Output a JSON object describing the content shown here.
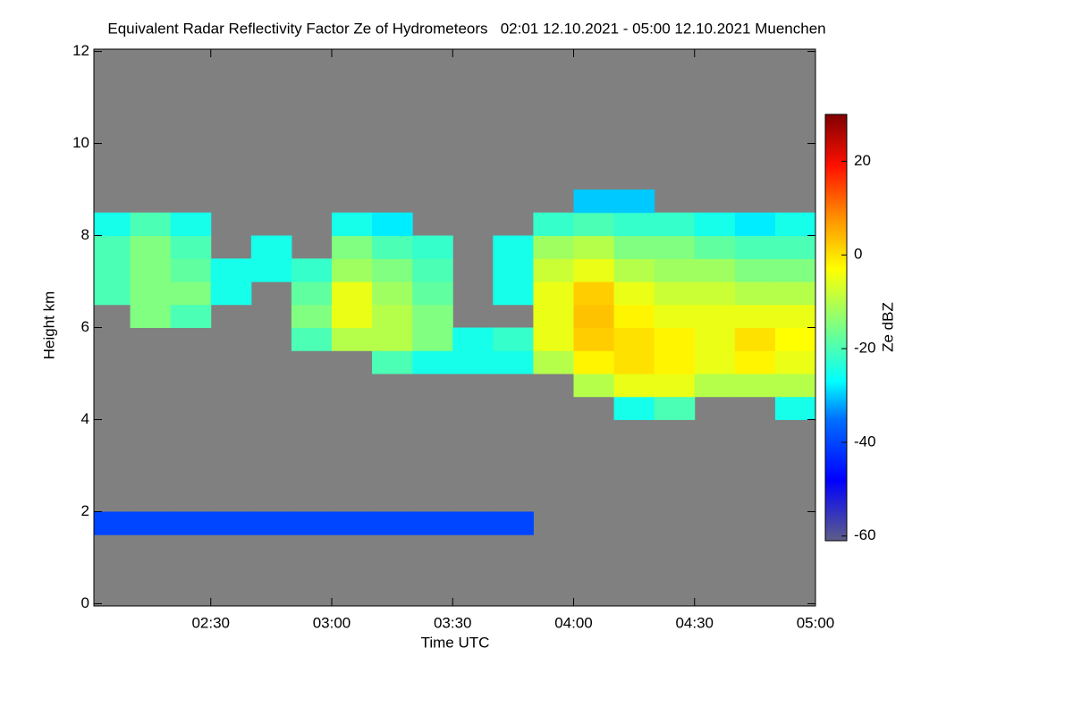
{
  "chart_data": {
    "type": "heatmap",
    "title": "Equivalent Radar Reflectivity Factor Ze of Hydrometeors   02:01 12.10.2021 - 05:00 12.10.2021 Muenchen",
    "x_label": "Time UTC",
    "y_label": "Height km",
    "colorbar_label": "Ze dBZ",
    "background": "#808080",
    "xlim": [
      121,
      300
    ],
    "xticks": [
      {
        "value": 150,
        "label": "02:30"
      },
      {
        "value": 180,
        "label": "03:00"
      },
      {
        "value": 210,
        "label": "03:30"
      },
      {
        "value": 240,
        "label": "04:00"
      },
      {
        "value": 270,
        "label": "04:30"
      },
      {
        "value": 300,
        "label": "05:00"
      }
    ],
    "ylim": [
      -0.05,
      12.05
    ],
    "yticks": [
      0,
      2,
      4,
      6,
      8,
      10,
      12
    ],
    "zlim": [
      -61,
      30
    ],
    "zticks": [
      20,
      0,
      -20,
      -40,
      -60
    ],
    "colormap": [
      [
        -61,
        "#5e5e88"
      ],
      [
        -48,
        "#0000ff"
      ],
      [
        -35,
        "#0070ff"
      ],
      [
        -27,
        "#00ffff"
      ],
      [
        -15,
        "#80ff80"
      ],
      [
        -3,
        "#ffff00"
      ],
      [
        8,
        "#ff9000"
      ],
      [
        19,
        "#ff1000"
      ],
      [
        30,
        "#800000"
      ]
    ],
    "x_bins": [
      121,
      130,
      140,
      150,
      160,
      170,
      180,
      190,
      200,
      210,
      220,
      230,
      240,
      250,
      260,
      270,
      280,
      290,
      300
    ],
    "y_bins": [
      1.5,
      2,
      2.5,
      3,
      3.5,
      4,
      4.5,
      5,
      5.5,
      6,
      6.5,
      7,
      7.5,
      8,
      8.5,
      9
    ],
    "z": [
      [
        -40,
        -40,
        -40,
        -40,
        -40,
        -40,
        -40,
        -40,
        -40,
        -40,
        -40,
        null,
        null,
        null,
        null,
        null,
        null,
        null
      ],
      [
        null,
        null,
        null,
        null,
        null,
        null,
        null,
        null,
        null,
        null,
        null,
        null,
        null,
        null,
        null,
        null,
        null,
        null
      ],
      [
        null,
        null,
        null,
        null,
        null,
        null,
        null,
        null,
        null,
        null,
        null,
        null,
        null,
        null,
        null,
        null,
        null,
        null
      ],
      [
        null,
        null,
        null,
        null,
        null,
        null,
        null,
        null,
        null,
        null,
        null,
        null,
        null,
        null,
        null,
        null,
        null,
        null
      ],
      [
        null,
        null,
        null,
        null,
        null,
        null,
        null,
        null,
        null,
        null,
        null,
        null,
        null,
        null,
        null,
        null,
        null,
        null
      ],
      [
        null,
        null,
        null,
        null,
        null,
        null,
        null,
        null,
        null,
        null,
        null,
        null,
        null,
        -25,
        -20,
        null,
        null,
        -25
      ],
      [
        null,
        null,
        null,
        null,
        null,
        null,
        null,
        null,
        null,
        null,
        null,
        null,
        -10,
        -5,
        -5,
        -10,
        -10,
        -10
      ],
      [
        null,
        null,
        null,
        null,
        null,
        null,
        null,
        -20,
        -25,
        -25,
        -25,
        -10,
        -2,
        0,
        -2,
        -5,
        -2,
        -5
      ],
      [
        null,
        null,
        null,
        null,
        null,
        -20,
        -10,
        -10,
        -15,
        -25,
        -22,
        -5,
        2,
        0,
        -2,
        -5,
        0,
        -3
      ],
      [
        null,
        -15,
        -20,
        null,
        null,
        -15,
        -5,
        -10,
        -15,
        null,
        null,
        -5,
        3,
        -2,
        -5,
        -5,
        -5,
        -5
      ],
      [
        -20,
        -15,
        -15,
        -25,
        null,
        -18,
        -5,
        -12,
        -18,
        null,
        -25,
        -5,
        2,
        -5,
        -8,
        -8,
        -10,
        -10
      ],
      [
        -20,
        -15,
        -18,
        -25,
        -25,
        -22,
        -12,
        -15,
        -20,
        null,
        -25,
        -8,
        -5,
        -10,
        -12,
        -12,
        -15,
        -15
      ],
      [
        -20,
        -15,
        -20,
        null,
        -25,
        null,
        -15,
        -20,
        -22,
        null,
        -25,
        -12,
        -10,
        -15,
        -15,
        -18,
        -20,
        -20
      ],
      [
        -25,
        -20,
        -25,
        null,
        null,
        null,
        -25,
        -28,
        null,
        null,
        null,
        -22,
        -20,
        -22,
        -22,
        -25,
        -28,
        -25
      ],
      [
        null,
        null,
        null,
        null,
        null,
        null,
        null,
        null,
        null,
        null,
        null,
        null,
        -30,
        -30,
        null,
        null,
        null,
        null
      ]
    ]
  }
}
